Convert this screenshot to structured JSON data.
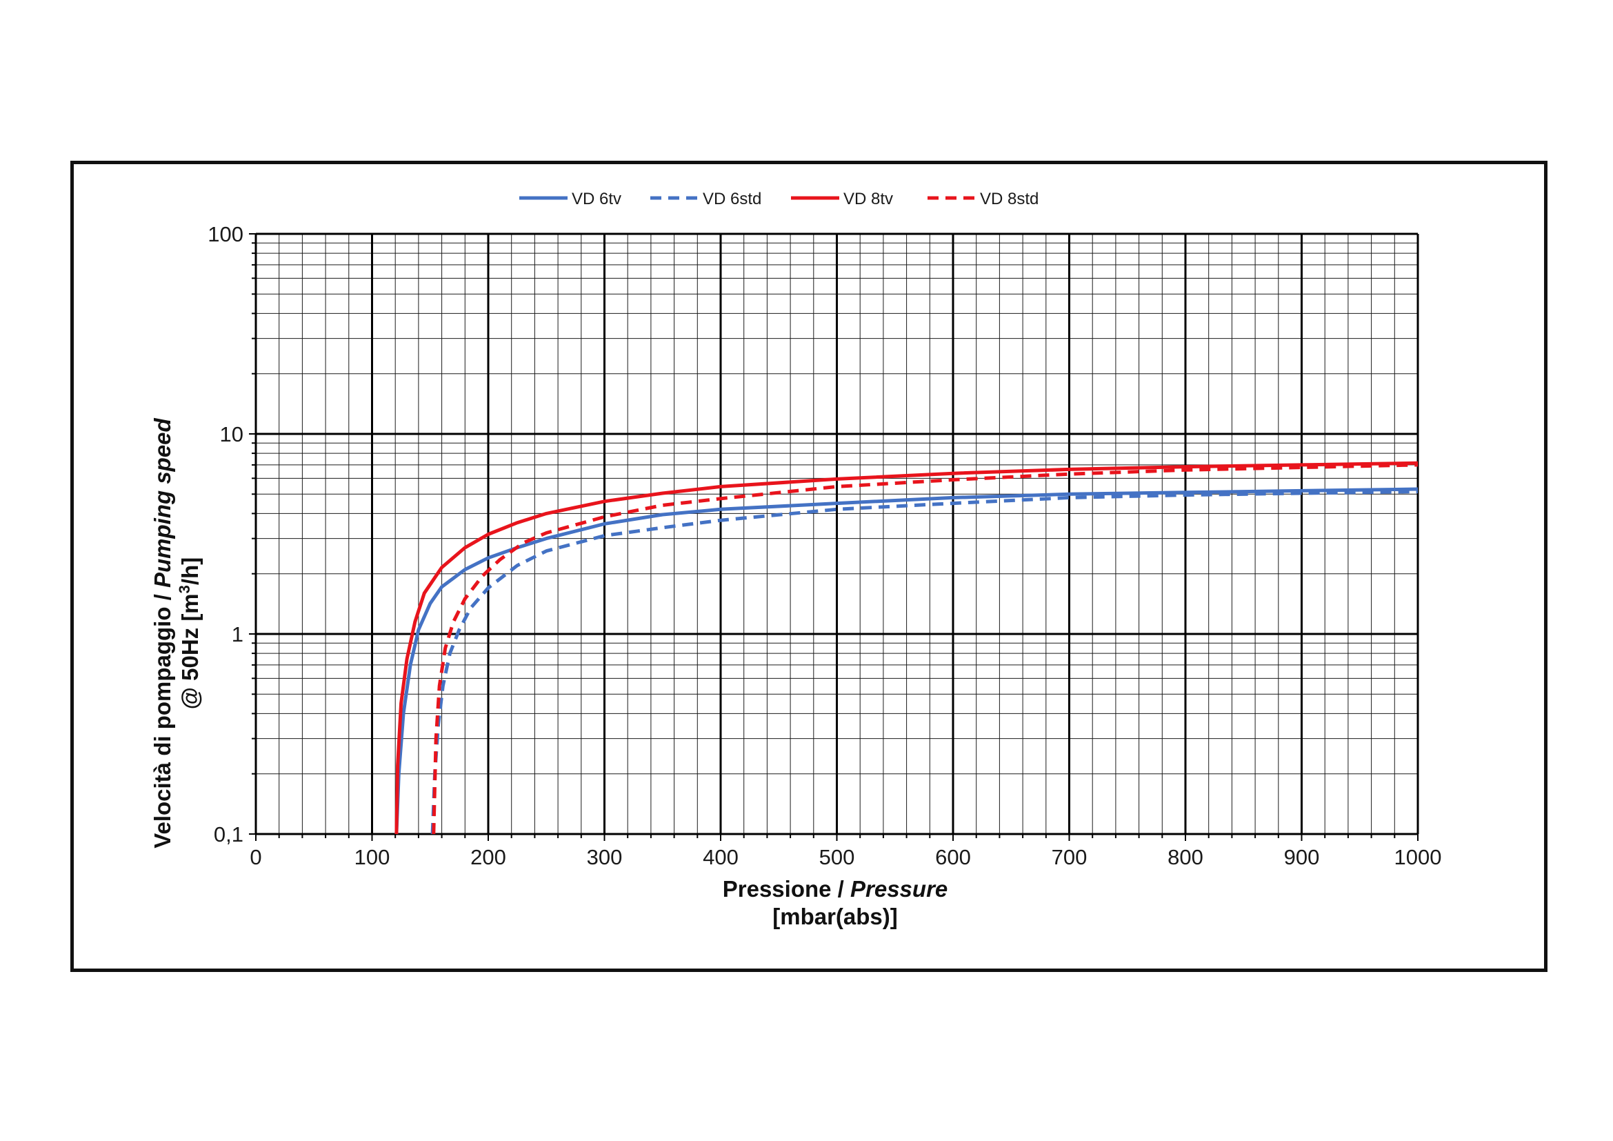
{
  "chart_data": {
    "type": "line",
    "title": "",
    "xlabel": {
      "main": "Pressione / ",
      "italic": "Pressure",
      "unit": "[mbar(abs)]"
    },
    "ylabel": {
      "line1_main": "Velocità di pompaggio / ",
      "line1_italic": "Pumping speed",
      "line2_main": "@ 50Hz [m",
      "line2_sup": "3",
      "line2_end": "/h]"
    },
    "xlim": [
      0,
      1000
    ],
    "ylim": [
      0.1,
      100
    ],
    "y_scale": "log",
    "grid": true,
    "legend_position": "top",
    "x_ticks": [
      "0",
      "100",
      "200",
      "300",
      "400",
      "500",
      "600",
      "700",
      "800",
      "900",
      "1000"
    ],
    "y_ticks": [
      "0,1",
      "1",
      "10",
      "100"
    ],
    "series": [
      {
        "name": "VD 6tv",
        "color": "#4472c4",
        "dash": "solid",
        "points": [
          [
            121,
            0.1
          ],
          [
            123,
            0.2
          ],
          [
            127,
            0.4
          ],
          [
            133,
            0.7
          ],
          [
            140,
            1.05
          ],
          [
            150,
            1.42
          ],
          [
            160,
            1.72
          ],
          [
            180,
            2.1
          ],
          [
            200,
            2.4
          ],
          [
            225,
            2.7
          ],
          [
            250,
            3.0
          ],
          [
            300,
            3.55
          ],
          [
            350,
            3.95
          ],
          [
            400,
            4.2
          ],
          [
            500,
            4.5
          ],
          [
            600,
            4.8
          ],
          [
            700,
            5.0
          ],
          [
            800,
            5.1
          ],
          [
            900,
            5.2
          ],
          [
            1000,
            5.3
          ]
        ]
      },
      {
        "name": "VD 6std",
        "color": "#4472c4",
        "dash": "dashed",
        "points": [
          [
            152,
            0.1
          ],
          [
            154,
            0.2
          ],
          [
            157,
            0.35
          ],
          [
            161,
            0.55
          ],
          [
            167,
            0.8
          ],
          [
            175,
            1.05
          ],
          [
            185,
            1.35
          ],
          [
            200,
            1.7
          ],
          [
            225,
            2.2
          ],
          [
            250,
            2.6
          ],
          [
            300,
            3.1
          ],
          [
            350,
            3.4
          ],
          [
            400,
            3.7
          ],
          [
            500,
            4.2
          ],
          [
            600,
            4.5
          ],
          [
            700,
            4.8
          ],
          [
            800,
            4.95
          ],
          [
            900,
            5.05
          ],
          [
            1000,
            5.15
          ]
        ]
      },
      {
        "name": "VD 8tv",
        "color": "#e8141c",
        "dash": "solid",
        "points": [
          [
            121,
            0.1
          ],
          [
            122,
            0.22
          ],
          [
            125,
            0.45
          ],
          [
            130,
            0.75
          ],
          [
            137,
            1.15
          ],
          [
            145,
            1.6
          ],
          [
            160,
            2.15
          ],
          [
            180,
            2.7
          ],
          [
            200,
            3.15
          ],
          [
            225,
            3.6
          ],
          [
            250,
            4.0
          ],
          [
            300,
            4.6
          ],
          [
            350,
            5.05
          ],
          [
            400,
            5.45
          ],
          [
            500,
            5.95
          ],
          [
            600,
            6.35
          ],
          [
            700,
            6.65
          ],
          [
            800,
            6.85
          ],
          [
            900,
            7.0
          ],
          [
            1000,
            7.15
          ]
        ]
      },
      {
        "name": "VD 8std",
        "color": "#e8141c",
        "dash": "dashed",
        "points": [
          [
            153,
            0.1
          ],
          [
            155,
            0.3
          ],
          [
            158,
            0.55
          ],
          [
            163,
            0.85
          ],
          [
            170,
            1.15
          ],
          [
            180,
            1.5
          ],
          [
            195,
            1.95
          ],
          [
            210,
            2.35
          ],
          [
            230,
            2.85
          ],
          [
            250,
            3.2
          ],
          [
            300,
            3.85
          ],
          [
            350,
            4.4
          ],
          [
            400,
            4.75
          ],
          [
            500,
            5.45
          ],
          [
            600,
            5.9
          ],
          [
            700,
            6.3
          ],
          [
            800,
            6.6
          ],
          [
            900,
            6.8
          ],
          [
            1000,
            7.0
          ]
        ]
      }
    ]
  }
}
